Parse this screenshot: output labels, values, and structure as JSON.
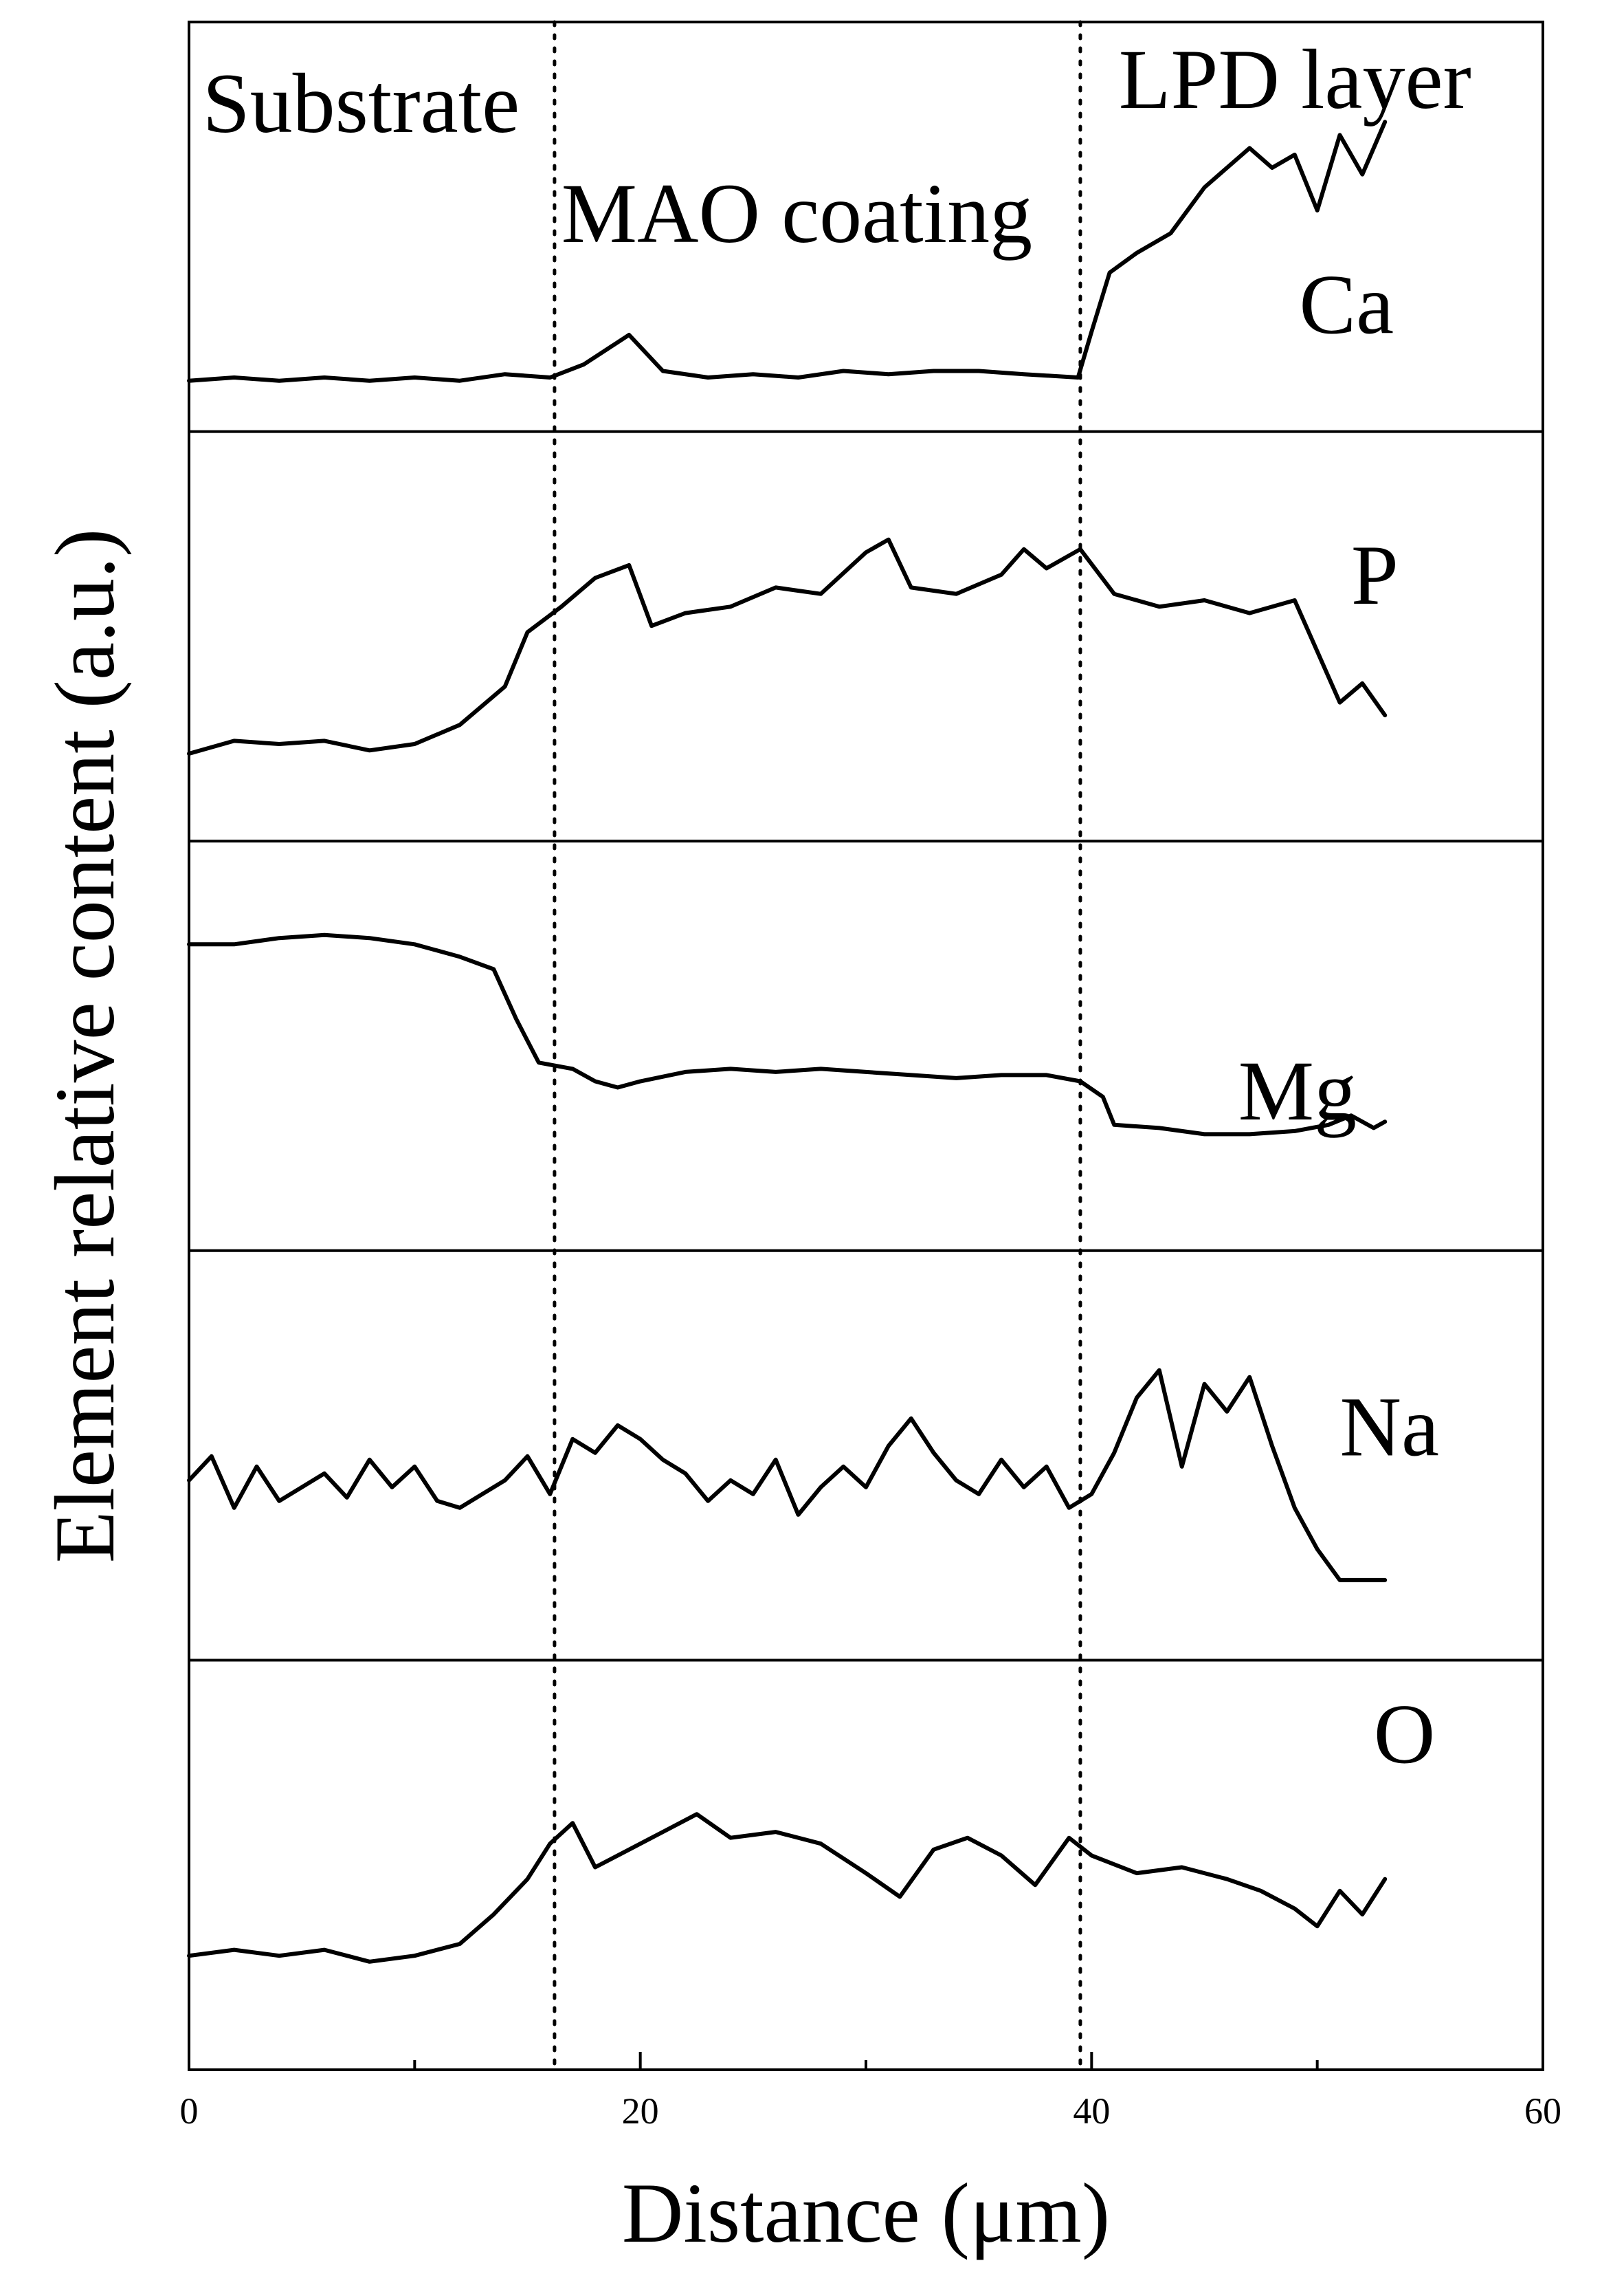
{
  "chart_data": {
    "type": "line",
    "xlabel": "Distance (μm)",
    "ylabel": "Element relative content (a.u.)",
    "xlim": [
      0,
      60
    ],
    "xticks": [
      0,
      20,
      40,
      60
    ],
    "stacked_panels": true,
    "grid": false,
    "vertical_markers": [
      16.2,
      39.5
    ],
    "annotations": [
      "Substrate",
      "MAO coating",
      "LPD layer"
    ],
    "series": [
      {
        "name": "Ca",
        "values": [
          [
            0,
            0.03
          ],
          [
            2,
            0.04
          ],
          [
            4,
            0.03
          ],
          [
            6,
            0.04
          ],
          [
            8,
            0.03
          ],
          [
            10,
            0.04
          ],
          [
            12,
            0.03
          ],
          [
            14,
            0.05
          ],
          [
            16,
            0.04
          ],
          [
            17.5,
            0.08
          ],
          [
            19.5,
            0.17
          ],
          [
            21,
            0.06
          ],
          [
            23,
            0.04
          ],
          [
            25,
            0.05
          ],
          [
            27,
            0.04
          ],
          [
            29,
            0.06
          ],
          [
            31,
            0.05
          ],
          [
            33,
            0.06
          ],
          [
            35,
            0.06
          ],
          [
            37,
            0.05
          ],
          [
            39.4,
            0.04
          ],
          [
            40,
            0.18
          ],
          [
            40.8,
            0.36
          ],
          [
            42,
            0.42
          ],
          [
            43.5,
            0.48
          ],
          [
            45,
            0.62
          ],
          [
            46,
            0.68
          ],
          [
            47,
            0.74
          ],
          [
            48,
            0.68
          ],
          [
            49,
            0.72
          ],
          [
            50,
            0.55
          ],
          [
            51,
            0.78
          ],
          [
            52,
            0.66
          ],
          [
            53,
            0.82
          ]
        ]
      },
      {
        "name": "P",
        "values": [
          [
            0,
            0.12
          ],
          [
            2,
            0.16
          ],
          [
            4,
            0.15
          ],
          [
            6,
            0.16
          ],
          [
            8,
            0.13
          ],
          [
            10,
            0.15
          ],
          [
            12,
            0.21
          ],
          [
            14,
            0.33
          ],
          [
            15,
            0.5
          ],
          [
            16.5,
            0.58
          ],
          [
            18,
            0.67
          ],
          [
            19.5,
            0.71
          ],
          [
            20.5,
            0.52
          ],
          [
            22,
            0.56
          ],
          [
            24,
            0.58
          ],
          [
            26,
            0.64
          ],
          [
            28,
            0.62
          ],
          [
            30,
            0.75
          ],
          [
            31,
            0.79
          ],
          [
            32,
            0.64
          ],
          [
            34,
            0.62
          ],
          [
            36,
            0.68
          ],
          [
            37,
            0.76
          ],
          [
            38,
            0.7
          ],
          [
            39.5,
            0.76
          ],
          [
            41,
            0.62
          ],
          [
            43,
            0.58
          ],
          [
            45,
            0.6
          ],
          [
            47,
            0.56
          ],
          [
            49,
            0.6
          ],
          [
            50,
            0.44
          ],
          [
            51,
            0.28
          ],
          [
            52,
            0.34
          ],
          [
            53,
            0.24
          ]
        ]
      },
      {
        "name": "Mg",
        "values": [
          [
            0,
            0.8
          ],
          [
            2,
            0.8
          ],
          [
            4,
            0.82
          ],
          [
            6,
            0.83
          ],
          [
            8,
            0.82
          ],
          [
            10,
            0.8
          ],
          [
            12,
            0.76
          ],
          [
            13.5,
            0.72
          ],
          [
            14.5,
            0.56
          ],
          [
            15.5,
            0.42
          ],
          [
            17,
            0.4
          ],
          [
            18,
            0.36
          ],
          [
            19,
            0.34
          ],
          [
            20,
            0.36
          ],
          [
            22,
            0.39
          ],
          [
            24,
            0.4
          ],
          [
            26,
            0.39
          ],
          [
            28,
            0.4
          ],
          [
            30,
            0.39
          ],
          [
            32,
            0.38
          ],
          [
            34,
            0.37
          ],
          [
            36,
            0.38
          ],
          [
            38,
            0.38
          ],
          [
            39.5,
            0.36
          ],
          [
            40.5,
            0.31
          ],
          [
            41,
            0.22
          ],
          [
            43,
            0.21
          ],
          [
            45,
            0.19
          ],
          [
            47,
            0.19
          ],
          [
            49,
            0.2
          ],
          [
            50.5,
            0.22
          ],
          [
            51.5,
            0.25
          ],
          [
            52.5,
            0.21
          ],
          [
            53,
            0.23
          ]
        ]
      },
      {
        "name": "Na",
        "values": [
          [
            0,
            0.38
          ],
          [
            1,
            0.45
          ],
          [
            2,
            0.3
          ],
          [
            3,
            0.42
          ],
          [
            4,
            0.32
          ],
          [
            5,
            0.36
          ],
          [
            6,
            0.4
          ],
          [
            7,
            0.33
          ],
          [
            8,
            0.44
          ],
          [
            9,
            0.36
          ],
          [
            10,
            0.42
          ],
          [
            11,
            0.32
          ],
          [
            12,
            0.3
          ],
          [
            13,
            0.34
          ],
          [
            14,
            0.38
          ],
          [
            15,
            0.45
          ],
          [
            16,
            0.34
          ],
          [
            17,
            0.5
          ],
          [
            18,
            0.46
          ],
          [
            19,
            0.54
          ],
          [
            20,
            0.5
          ],
          [
            21,
            0.44
          ],
          [
            22,
            0.4
          ],
          [
            23,
            0.32
          ],
          [
            24,
            0.38
          ],
          [
            25,
            0.34
          ],
          [
            26,
            0.44
          ],
          [
            27,
            0.28
          ],
          [
            28,
            0.36
          ],
          [
            29,
            0.42
          ],
          [
            30,
            0.36
          ],
          [
            31,
            0.48
          ],
          [
            32,
            0.56
          ],
          [
            33,
            0.46
          ],
          [
            34,
            0.38
          ],
          [
            35,
            0.34
          ],
          [
            36,
            0.44
          ],
          [
            37,
            0.36
          ],
          [
            38,
            0.42
          ],
          [
            39,
            0.3
          ],
          [
            40,
            0.34
          ],
          [
            41,
            0.46
          ],
          [
            42,
            0.62
          ],
          [
            43,
            0.7
          ],
          [
            44,
            0.42
          ],
          [
            45,
            0.66
          ],
          [
            46,
            0.58
          ],
          [
            47,
            0.68
          ],
          [
            48,
            0.48
          ],
          [
            49,
            0.3
          ],
          [
            50,
            0.18
          ],
          [
            51,
            0.09
          ],
          [
            53,
            0.09
          ]
        ]
      },
      {
        "name": "O",
        "values": [
          [
            0,
            0.22
          ],
          [
            2,
            0.24
          ],
          [
            4,
            0.22
          ],
          [
            6,
            0.24
          ],
          [
            8,
            0.2
          ],
          [
            10,
            0.22
          ],
          [
            12,
            0.26
          ],
          [
            13.5,
            0.36
          ],
          [
            15,
            0.48
          ],
          [
            16,
            0.6
          ],
          [
            17,
            0.67
          ],
          [
            18,
            0.52
          ],
          [
            19.5,
            0.58
          ],
          [
            21,
            0.64
          ],
          [
            22.5,
            0.7
          ],
          [
            24,
            0.62
          ],
          [
            26,
            0.64
          ],
          [
            28,
            0.6
          ],
          [
            30,
            0.5
          ],
          [
            31.5,
            0.42
          ],
          [
            33,
            0.58
          ],
          [
            34.5,
            0.62
          ],
          [
            36,
            0.56
          ],
          [
            37.5,
            0.46
          ],
          [
            39,
            0.62
          ],
          [
            40,
            0.56
          ],
          [
            42,
            0.5
          ],
          [
            44,
            0.52
          ],
          [
            46,
            0.48
          ],
          [
            47.5,
            0.44
          ],
          [
            49,
            0.38
          ],
          [
            50,
            0.32
          ],
          [
            51,
            0.44
          ],
          [
            52,
            0.36
          ],
          [
            53,
            0.48
          ]
        ]
      }
    ]
  }
}
